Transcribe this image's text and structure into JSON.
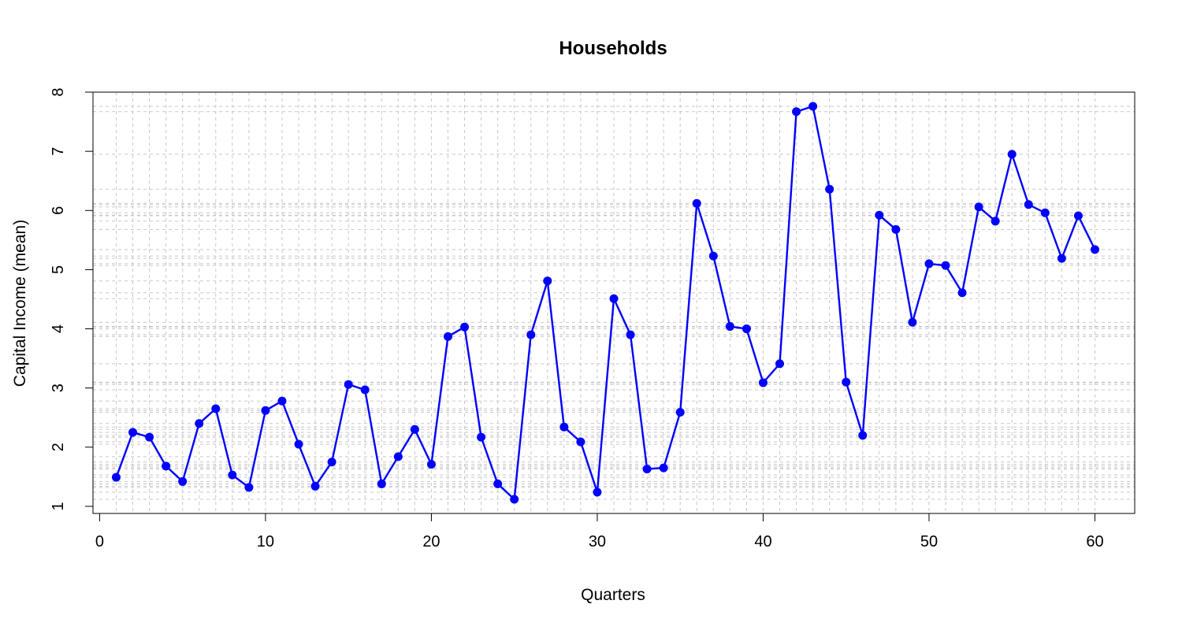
{
  "chart_data": {
    "type": "line",
    "title": "Households",
    "xlabel": "Quarters",
    "ylabel": "Capital Income (mean)",
    "xlim": [
      -0.4,
      62.4
    ],
    "ylim": [
      0.88,
      8.0
    ],
    "x_ticks": [
      0,
      10,
      20,
      30,
      40,
      50,
      60
    ],
    "y_ticks": [
      1,
      2,
      3,
      4,
      5,
      6,
      7,
      8
    ],
    "grid": true,
    "grid_x_step": 1,
    "grid_y_at_values": true,
    "series": [
      {
        "color": "#0000ff",
        "marker": "circle",
        "x": [
          1,
          2,
          3,
          4,
          5,
          6,
          7,
          8,
          9,
          10,
          11,
          12,
          13,
          14,
          15,
          16,
          17,
          18,
          19,
          20,
          21,
          22,
          23,
          24,
          25,
          26,
          27,
          28,
          29,
          30,
          31,
          32,
          33,
          34,
          35,
          36,
          37,
          38,
          39,
          40,
          41,
          42,
          43,
          44,
          45,
          46,
          47,
          48,
          49,
          50,
          51,
          52,
          53,
          54,
          55,
          56,
          57,
          58,
          59,
          60
        ],
        "values": [
          1.49,
          2.25,
          2.17,
          1.68,
          1.42,
          2.4,
          2.65,
          1.53,
          1.32,
          2.62,
          2.78,
          2.05,
          1.34,
          1.75,
          3.06,
          2.97,
          1.38,
          1.84,
          2.3,
          1.71,
          3.87,
          4.03,
          2.17,
          1.38,
          1.12,
          3.9,
          4.81,
          2.34,
          2.09,
          1.24,
          4.51,
          3.9,
          1.63,
          1.65,
          2.59,
          6.12,
          5.23,
          4.04,
          4.0,
          3.09,
          3.41,
          7.67,
          7.76,
          6.36,
          3.1,
          2.2,
          5.92,
          5.68,
          4.11,
          5.1,
          5.07,
          4.61,
          6.06,
          5.82,
          6.95,
          6.1,
          5.96,
          5.19,
          5.91,
          5.34
        ]
      }
    ]
  }
}
